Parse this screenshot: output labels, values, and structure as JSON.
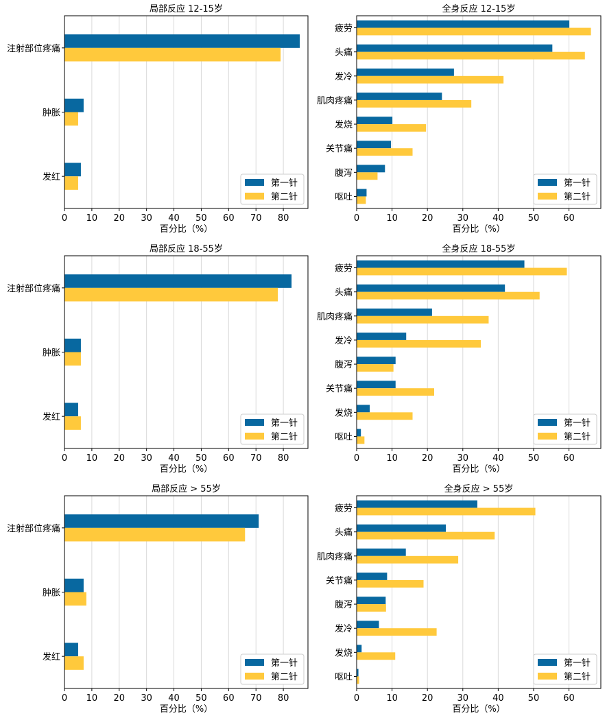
{
  "colors": {
    "dose1": "#0868a0",
    "dose2": "#ffc93c"
  },
  "legend": {
    "dose1": "第一针",
    "dose2": "第二针"
  },
  "chart_data": [
    {
      "type": "bar",
      "orientation": "horizontal",
      "title": "局部反应 12-15岁",
      "xlabel": "百分比（%）",
      "ylabel": "",
      "xlim": [
        0,
        89
      ],
      "xticks": [
        0,
        10,
        20,
        30,
        40,
        50,
        60,
        70,
        80
      ],
      "grid": "vertical",
      "legend_position": "bottom-right",
      "categories": [
        "注射部位疼痛",
        "肿胀",
        "发红"
      ],
      "series": [
        {
          "name": "第一针",
          "values": [
            86,
            7,
            6
          ]
        },
        {
          "name": "第二针",
          "values": [
            79,
            5,
            5
          ]
        }
      ]
    },
    {
      "type": "bar",
      "orientation": "horizontal",
      "title": "全身反应 12-15岁",
      "xlabel": "百分比（%）",
      "ylabel": "",
      "xlim": [
        0,
        69
      ],
      "xticks": [
        0,
        10,
        20,
        30,
        40,
        50,
        60
      ],
      "grid": "vertical",
      "legend_position": "bottom-right",
      "categories": [
        "疲劳",
        "头痛",
        "发冷",
        "肌肉疼痛",
        "发烧",
        "关节痛",
        "腹泻",
        "呕吐"
      ],
      "series": [
        {
          "name": "第一针",
          "values": [
            60.1,
            55.3,
            27.5,
            24.1,
            10.1,
            9.7,
            8.0,
            2.8
          ]
        },
        {
          "name": "第二针",
          "values": [
            66.2,
            64.5,
            41.5,
            32.4,
            19.6,
            15.8,
            5.9,
            2.6
          ]
        }
      ]
    },
    {
      "type": "bar",
      "orientation": "horizontal",
      "title": "局部反应 18-55岁",
      "xlabel": "百分比（%）",
      "ylabel": "",
      "xlim": [
        0,
        89
      ],
      "xticks": [
        0,
        10,
        20,
        30,
        40,
        50,
        60,
        70,
        80
      ],
      "grid": "vertical",
      "legend_position": "bottom-right",
      "categories": [
        "注射部位疼痛",
        "肿胀",
        "发红"
      ],
      "series": [
        {
          "name": "第一针",
          "values": [
            83,
            6,
            5
          ]
        },
        {
          "name": "第二针",
          "values": [
            78,
            6,
            6
          ]
        }
      ]
    },
    {
      "type": "bar",
      "orientation": "horizontal",
      "title": "全身反应 18-55岁",
      "xlabel": "百分比（%）",
      "ylabel": "",
      "xlim": [
        0,
        69
      ],
      "xticks": [
        0,
        10,
        20,
        30,
        40,
        50,
        60
      ],
      "grid": "vertical",
      "legend_position": "bottom-right",
      "categories": [
        "疲劳",
        "头痛",
        "肌肉疼痛",
        "发冷",
        "腹泻",
        "关节痛",
        "发烧",
        "呕吐"
      ],
      "series": [
        {
          "name": "第一针",
          "values": [
            47.4,
            41.9,
            21.3,
            14.0,
            11.0,
            11.0,
            3.7,
            1.2
          ]
        },
        {
          "name": "第二针",
          "values": [
            59.4,
            51.7,
            37.3,
            35.1,
            10.4,
            21.9,
            15.8,
            2.2
          ]
        }
      ]
    },
    {
      "type": "bar",
      "orientation": "horizontal",
      "title": "局部反应 > 55岁",
      "xlabel": "百分比（%）",
      "ylabel": "",
      "xlim": [
        0,
        89
      ],
      "xticks": [
        0,
        10,
        20,
        30,
        40,
        50,
        60,
        70,
        80
      ],
      "grid": "vertical",
      "legend_position": "bottom-right",
      "categories": [
        "注射部位疼痛",
        "肿胀",
        "发红"
      ],
      "series": [
        {
          "name": "第一针",
          "values": [
            71,
            7,
            5
          ]
        },
        {
          "name": "第二针",
          "values": [
            66,
            8,
            7
          ]
        }
      ]
    },
    {
      "type": "bar",
      "orientation": "horizontal",
      "title": "全身反应 > 55岁",
      "xlabel": "百分比（%）",
      "ylabel": "",
      "xlim": [
        0,
        69
      ],
      "xticks": [
        0,
        10,
        20,
        30,
        40,
        50,
        60
      ],
      "grid": "vertical",
      "legend_position": "bottom-right",
      "categories": [
        "疲劳",
        "头痛",
        "肌肉疼痛",
        "关节痛",
        "腹泻",
        "发冷",
        "发烧",
        "呕吐"
      ],
      "series": [
        {
          "name": "第一针",
          "values": [
            34.1,
            25.2,
            13.9,
            8.6,
            8.2,
            6.3,
            1.4,
            0.5
          ]
        },
        {
          "name": "第二针",
          "values": [
            50.5,
            39.0,
            28.7,
            18.9,
            8.3,
            22.6,
            10.9,
            0.7
          ]
        }
      ]
    }
  ]
}
